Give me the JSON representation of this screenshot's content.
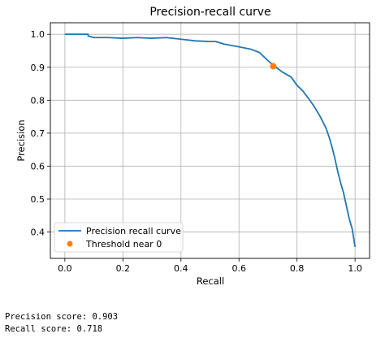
{
  "chart_data": {
    "type": "line",
    "title": "Precision-recall curve",
    "xlabel": "Recall",
    "ylabel": "Precision",
    "xlim": [
      -0.05,
      1.05
    ],
    "ylim": [
      0.32,
      1.035
    ],
    "xticks": [
      "0.0",
      "0.2",
      "0.4",
      "0.6",
      "0.8",
      "1.0"
    ],
    "yticks": [
      "0.4",
      "0.5",
      "0.6",
      "0.7",
      "0.8",
      "0.9",
      "1.0"
    ],
    "grid": true,
    "legend_position": "lower-left",
    "series": [
      {
        "name": "Precision recall curve",
        "color": "#1f77b4",
        "points": [
          [
            0.0,
            1.0
          ],
          [
            0.08,
            1.0
          ],
          [
            0.08,
            0.995
          ],
          [
            0.1,
            0.99
          ],
          [
            0.15,
            0.99
          ],
          [
            0.2,
            0.988
          ],
          [
            0.25,
            0.99
          ],
          [
            0.3,
            0.988
          ],
          [
            0.35,
            0.99
          ],
          [
            0.4,
            0.985
          ],
          [
            0.45,
            0.98
          ],
          [
            0.5,
            0.978
          ],
          [
            0.52,
            0.978
          ],
          [
            0.55,
            0.97
          ],
          [
            0.6,
            0.962
          ],
          [
            0.64,
            0.955
          ],
          [
            0.67,
            0.945
          ],
          [
            0.7,
            0.92
          ],
          [
            0.72,
            0.905
          ],
          [
            0.75,
            0.885
          ],
          [
            0.78,
            0.87
          ],
          [
            0.8,
            0.845
          ],
          [
            0.82,
            0.828
          ],
          [
            0.84,
            0.805
          ],
          [
            0.86,
            0.78
          ],
          [
            0.88,
            0.75
          ],
          [
            0.9,
            0.715
          ],
          [
            0.91,
            0.69
          ],
          [
            0.92,
            0.66
          ],
          [
            0.93,
            0.625
          ],
          [
            0.94,
            0.585
          ],
          [
            0.95,
            0.55
          ],
          [
            0.96,
            0.52
          ],
          [
            0.97,
            0.48
          ],
          [
            0.98,
            0.44
          ],
          [
            0.99,
            0.41
          ],
          [
            1.0,
            0.355
          ]
        ]
      },
      {
        "name": "Threshold near 0",
        "color": "#ff7f0e",
        "marker": "circle",
        "points": [
          [
            0.718,
            0.903
          ]
        ]
      }
    ]
  },
  "output": {
    "precision_line": "Precision score: 0.903",
    "recall_line": "Recall score: 0.718"
  }
}
